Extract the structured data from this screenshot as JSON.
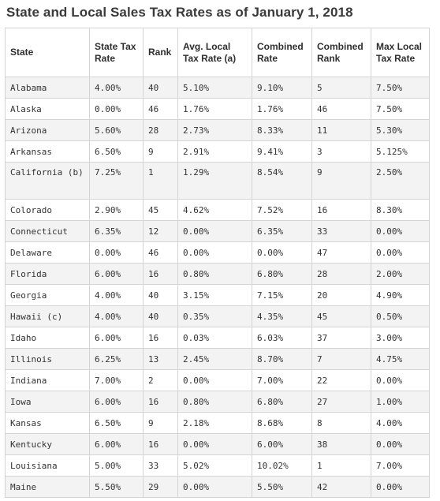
{
  "title": "State and Local Sales Tax Rates as of January 1, 2018",
  "headers": [
    "State",
    "State Tax Rate",
    "Rank",
    "Avg. Local Tax Rate (a)",
    "Combined Rate",
    "Combined Rank",
    "Max Local Tax Rate"
  ],
  "rows": [
    [
      "Alabama",
      "4.00%",
      "40",
      "5.10%",
      "9.10%",
      "5",
      "7.50%"
    ],
    [
      "Alaska",
      "0.00%",
      "46",
      "1.76%",
      "1.76%",
      "46",
      "7.50%"
    ],
    [
      "Arizona",
      "5.60%",
      "28",
      "2.73%",
      "8.33%",
      "11",
      "5.30%"
    ],
    [
      "Arkansas",
      "6.50%",
      "9",
      "2.91%",
      "9.41%",
      "3",
      "5.125%"
    ],
    [
      "California (b)",
      "7.25%",
      "1",
      "1.29%",
      "8.54%",
      "9",
      "2.50%"
    ],
    [
      "Colorado",
      "2.90%",
      "45",
      "4.62%",
      "7.52%",
      "16",
      "8.30%"
    ],
    [
      "Connecticut",
      "6.35%",
      "12",
      "0.00%",
      "6.35%",
      "33",
      "0.00%"
    ],
    [
      "Delaware",
      "0.00%",
      "46",
      "0.00%",
      "0.00%",
      "47",
      "0.00%"
    ],
    [
      "Florida",
      "6.00%",
      "16",
      "0.80%",
      "6.80%",
      "28",
      "2.00%"
    ],
    [
      "Georgia",
      "4.00%",
      "40",
      "3.15%",
      "7.15%",
      "20",
      "4.90%"
    ],
    [
      "Hawaii (c)",
      "4.00%",
      "40",
      "0.35%",
      "4.35%",
      "45",
      "0.50%"
    ],
    [
      "Idaho",
      "6.00%",
      "16",
      "0.03%",
      "6.03%",
      "37",
      "3.00%"
    ],
    [
      "Illinois",
      "6.25%",
      "13",
      "2.45%",
      "8.70%",
      "7",
      "4.75%"
    ],
    [
      "Indiana",
      "7.00%",
      "2",
      "0.00%",
      "7.00%",
      "22",
      "0.00%"
    ],
    [
      "Iowa",
      "6.00%",
      "16",
      "0.80%",
      "6.80%",
      "27",
      "1.00%"
    ],
    [
      "Kansas",
      "6.50%",
      "9",
      "2.18%",
      "8.68%",
      "8",
      "4.00%"
    ],
    [
      "Kentucky",
      "6.00%",
      "16",
      "0.00%",
      "6.00%",
      "38",
      "0.00%"
    ],
    [
      "Louisiana",
      "5.00%",
      "33",
      "5.02%",
      "10.02%",
      "1",
      "7.00%"
    ],
    [
      "Maine",
      "5.50%",
      "29",
      "0.00%",
      "5.50%",
      "42",
      "0.00%"
    ]
  ]
}
